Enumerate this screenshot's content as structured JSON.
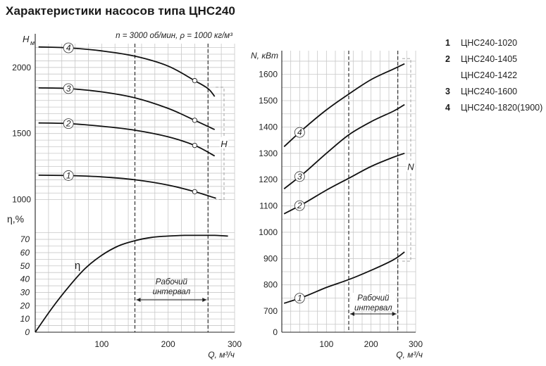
{
  "title": "Характеристики насосов типа ЦНС240",
  "left_header": "n = 3000 об/мин, ρ = 1000 кг/м³",
  "legend": [
    {
      "num": "1",
      "labels": [
        "ЦНС240-1020"
      ]
    },
    {
      "num": "2",
      "labels": [
        "ЦНС240-1405",
        "ЦНС240-1422"
      ]
    },
    {
      "num": "3",
      "labels": [
        "ЦНС240-1600"
      ]
    },
    {
      "num": "4",
      "labels": [
        "ЦНС240-1820(1900)"
      ]
    }
  ],
  "chart_data": [
    {
      "type": "line",
      "name": "head",
      "ylabel": "Hм",
      "xlabel": "",
      "xlim": [
        0,
        300
      ],
      "ylim": [
        950,
        2180
      ],
      "yticks": [
        1000,
        1500,
        2000
      ],
      "grid": true,
      "bracket_label": "H",
      "series": [
        {
          "name": "4",
          "x": [
            5,
            50,
            100,
            150,
            200,
            240,
            260,
            270
          ],
          "y": [
            2155,
            2148,
            2125,
            2085,
            2010,
            1900,
            1840,
            1780
          ]
        },
        {
          "name": "3",
          "x": [
            5,
            50,
            100,
            150,
            200,
            240,
            270
          ],
          "y": [
            1845,
            1840,
            1815,
            1770,
            1690,
            1600,
            1530
          ]
        },
        {
          "name": "2",
          "x": [
            5,
            50,
            100,
            150,
            200,
            240,
            270
          ],
          "y": [
            1580,
            1575,
            1555,
            1525,
            1475,
            1410,
            1330
          ]
        },
        {
          "name": "1",
          "x": [
            5,
            50,
            100,
            150,
            200,
            240,
            272
          ],
          "y": [
            1185,
            1182,
            1172,
            1150,
            1110,
            1060,
            1010
          ]
        }
      ],
      "markers": [
        {
          "series": "4",
          "x": 240
        },
        {
          "series": "3",
          "x": 240
        },
        {
          "series": "2",
          "x": 240
        },
        {
          "series": "1",
          "x": 240
        }
      ],
      "label_positions": [
        {
          "series": "4",
          "x": 50
        },
        {
          "series": "3",
          "x": 50
        },
        {
          "series": "2",
          "x": 50
        },
        {
          "series": "1",
          "x": 50
        }
      ],
      "bracket": [
        1000,
        1850
      ]
    },
    {
      "type": "line",
      "name": "efficiency",
      "ylabel": "η,%",
      "xlabel": "Q, м³/ч",
      "xlim": [
        0,
        300
      ],
      "ylim": [
        0,
        78
      ],
      "yticks": [
        0,
        10,
        20,
        30,
        40,
        50,
        60,
        70
      ],
      "xticks": [
        100,
        200,
        300
      ],
      "grid": true,
      "curve_label": "η",
      "series": [
        {
          "name": "η",
          "x": [
            0,
            25,
            50,
            75,
            100,
            125,
            150,
            175,
            200,
            225,
            250,
            270,
            290
          ],
          "y": [
            0,
            18,
            34,
            48,
            58,
            65,
            69,
            71.5,
            72.5,
            73,
            73,
            73,
            72.5
          ]
        }
      ],
      "interval": [
        150,
        260
      ],
      "interval_label": [
        "Рабочий",
        "интервал"
      ]
    },
    {
      "type": "line",
      "name": "power",
      "ylabel": "N, кВт",
      "xlabel": "Q, м³/ч",
      "xlim": [
        0,
        300
      ],
      "ylim": [
        620,
        1690
      ],
      "yticks": [
        700,
        800,
        900,
        1000,
        1100,
        1200,
        1300,
        1400,
        1500,
        1600
      ],
      "zero_label": "0",
      "xticks": [
        100,
        200,
        300
      ],
      "grid": true,
      "bracket_label": "N",
      "series": [
        {
          "name": "4",
          "x": [
            5,
            50,
            100,
            150,
            200,
            250,
            275
          ],
          "y": [
            1325,
            1395,
            1465,
            1525,
            1580,
            1620,
            1640
          ]
        },
        {
          "name": "3",
          "x": [
            5,
            50,
            100,
            150,
            200,
            250,
            275
          ],
          "y": [
            1165,
            1225,
            1300,
            1370,
            1420,
            1460,
            1485
          ]
        },
        {
          "name": "2",
          "x": [
            5,
            50,
            100,
            150,
            200,
            250,
            275
          ],
          "y": [
            1070,
            1110,
            1160,
            1205,
            1250,
            1285,
            1300
          ]
        },
        {
          "name": "1",
          "x": [
            5,
            50,
            100,
            150,
            200,
            250,
            275
          ],
          "y": [
            730,
            755,
            790,
            820,
            855,
            895,
            925
          ]
        }
      ],
      "label_positions": [
        {
          "series": "4",
          "x": 40
        },
        {
          "series": "3",
          "x": 40
        },
        {
          "series": "2",
          "x": 40
        },
        {
          "series": "1",
          "x": 40
        }
      ],
      "interval": [
        150,
        260
      ],
      "interval_label": [
        "Рабочий",
        "интервал"
      ],
      "bracket": [
        890,
        1660
      ]
    }
  ]
}
